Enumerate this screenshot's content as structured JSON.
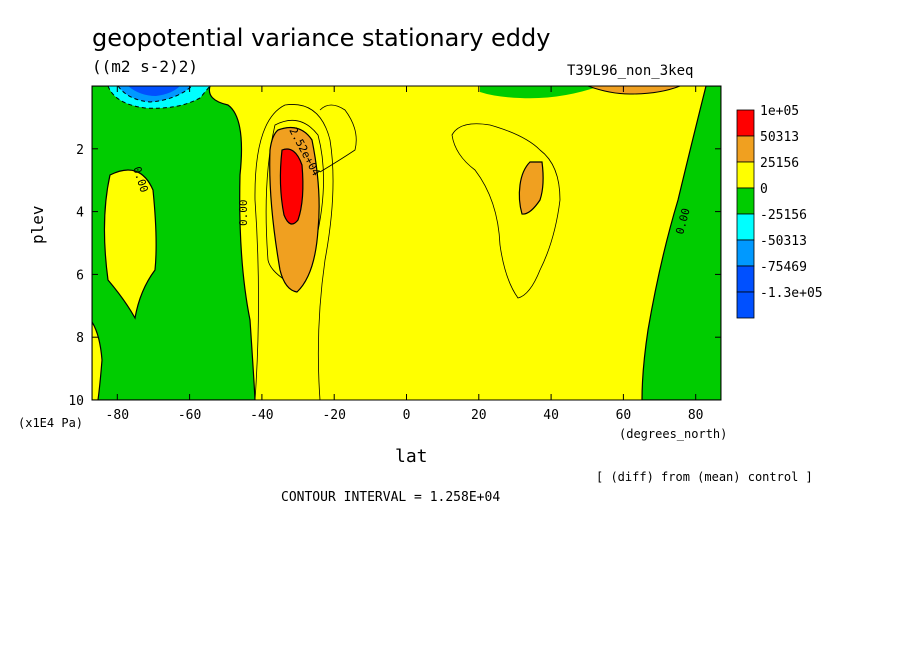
{
  "header": {
    "title": "geopotential variance stationary eddy",
    "units": "((m2 s-2)2)",
    "run": "T39L96_non_3keq"
  },
  "footer": {
    "note": "[ (diff) from (mean) control ]",
    "contour_interval": "CONTOUR INTERVAL = 1.258E+04"
  },
  "chart_data": {
    "type": "heatmap",
    "title": "geopotential variance stationary eddy",
    "units": "((m2 s-2)2)",
    "xlabel": "lat",
    "x_unit": "(degrees_north)",
    "ylabel": "plev",
    "y_unit": "(x1E4 Pa)",
    "xlim": [
      -87,
      87
    ],
    "ylim": [
      10,
      0
    ],
    "xticks": [
      -80,
      -60,
      -40,
      -20,
      0,
      20,
      40,
      60,
      80
    ],
    "yticks": [
      2,
      4,
      6,
      8,
      10
    ],
    "legend_placement": "right",
    "colorbar": [
      {
        "label": "1e+05",
        "color": "#ff0000"
      },
      {
        "label": "50313",
        "color": "#f0a020"
      },
      {
        "label": "25156",
        "color": "#ffff00"
      },
      {
        "label": "0",
        "color": "#00cc00"
      },
      {
        "label": "-25156",
        "color": "#00ffff"
      },
      {
        "label": "-50313",
        "color": "#0099ff"
      },
      {
        "label": "-75469",
        "color": "#0050ff"
      },
      {
        "label": "-1.3e+05",
        "color": "#0050ff"
      }
    ],
    "contour_labels": [
      "0.00",
      "0.00",
      "0.00",
      "2.52e+04"
    ],
    "regions": [
      {
        "level": "0 to 25156",
        "approx_lat": [
          -60,
          60
        ],
        "approx_plev": [
          0,
          10
        ]
      },
      {
        "level": "-25156 to 0",
        "approx_lat": [
          -87,
          -45
        ],
        "approx_plev": [
          0,
          10
        ]
      },
      {
        "level": "-25156 to 0",
        "approx_lat": [
          62,
          87
        ],
        "approx_plev": [
          0,
          10
        ]
      },
      {
        "level": "25156 to 50313",
        "approx_lat": [
          -40,
          -25
        ],
        "approx_plev": [
          1.2,
          6.5
        ]
      },
      {
        "level": "50313 to 1e+05",
        "approx_lat": [
          -36,
          -30
        ],
        "approx_plev": [
          2.0,
          4.3
        ]
      },
      {
        "level": "25156 to 50313",
        "approx_lat": [
          31,
          39
        ],
        "approx_plev": [
          2.5,
          4.2
        ]
      },
      {
        "level": "below -75469",
        "approx_lat": [
          -84,
          -66
        ],
        "approx_plev": [
          0,
          0.6
        ]
      }
    ]
  }
}
